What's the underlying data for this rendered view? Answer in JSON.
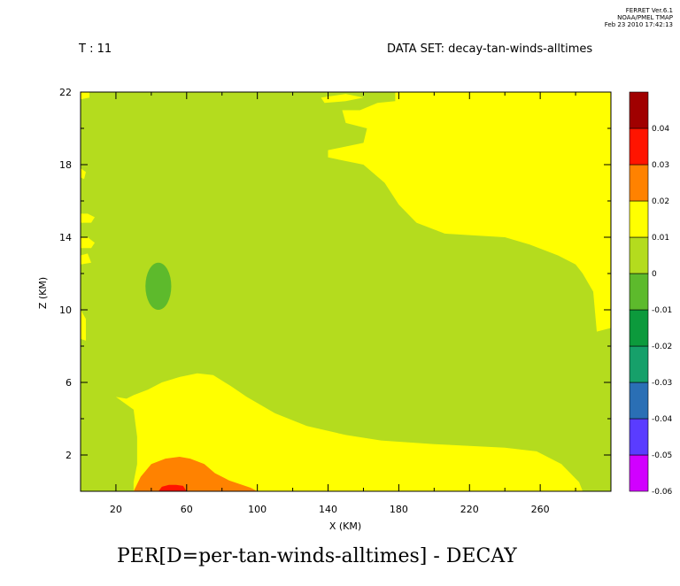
{
  "header": {
    "ferret_line1": "FERRET  Ver.6.1",
    "ferret_line2": "NOAA/PMEL TMAP",
    "ferret_line3": "Feb 23 2010 17:42:13",
    "time_label": "T : 11",
    "dataset_label": "DATA SET: decay-tan-winds-alltimes"
  },
  "bottom_title": "PER[D=per-tan-winds-alltimes] - DECAY",
  "chart_data": {
    "type": "heatmap",
    "xlabel": "X (KM)",
    "ylabel": "Z (KM)",
    "xlim": [
      0,
      300
    ],
    "ylim": [
      0,
      22
    ],
    "x_ticks": [
      20,
      60,
      100,
      140,
      180,
      220,
      260
    ],
    "x_minor": [
      40,
      80,
      120,
      160,
      200,
      240,
      280
    ],
    "y_ticks": [
      2,
      6,
      10,
      14,
      18,
      22
    ],
    "y_minor": [
      4,
      8,
      12,
      16,
      20
    ],
    "colorbar_levels": [
      -0.06,
      -0.05,
      -0.04,
      -0.03,
      -0.02,
      -0.01,
      0,
      0.01,
      0.02,
      0.03,
      0.04
    ],
    "colorbar_labels": [
      "-0.06",
      "-0.05",
      "-0.04",
      "-0.03",
      "-0.02",
      "-0.01",
      "0",
      "0.01",
      "0.02",
      "0.03",
      "0.04"
    ],
    "colorbar_colors": [
      "#d100ff",
      "#5a3cff",
      "#2a6fb5",
      "#16a06a",
      "#0c9a3c",
      "#5dba2c",
      "#b4dc1e",
      "#ffff00",
      "#ff8200",
      "#ff1400",
      "#a00000"
    ],
    "regions": [
      {
        "level": "0 to 0.01",
        "color": "#ffff00",
        "polygon": [
          [
            178,
            22
          ],
          [
            300,
            22
          ],
          [
            300,
            9
          ],
          [
            292,
            8.8
          ],
          [
            290,
            11
          ],
          [
            284,
            12
          ],
          [
            280,
            12.5
          ],
          [
            270,
            13
          ],
          [
            254,
            13.6
          ],
          [
            240,
            14
          ],
          [
            222,
            14.1
          ],
          [
            206,
            14.2
          ],
          [
            190,
            14.8
          ],
          [
            180,
            15.8
          ],
          [
            172,
            17
          ],
          [
            160,
            18
          ],
          [
            140,
            18.4
          ],
          [
            140,
            18.8
          ],
          [
            160,
            19.2
          ],
          [
            162,
            20
          ],
          [
            150,
            20.3
          ],
          [
            148,
            21
          ],
          [
            158,
            21
          ],
          [
            168,
            21.4
          ],
          [
            178,
            21.5
          ]
        ]
      },
      {
        "level": "0 to 0.01",
        "color": "#ffff00",
        "polygon": [
          [
            136,
            21.7
          ],
          [
            150,
            21.9
          ],
          [
            160,
            21.7
          ],
          [
            150,
            21.5
          ],
          [
            138,
            21.4
          ]
        ]
      },
      {
        "level": "0 to 0.01",
        "color": "#ffff00",
        "polygon": [
          [
            0,
            14.8
          ],
          [
            6,
            14.8
          ],
          [
            8,
            15.1
          ],
          [
            4,
            15.3
          ],
          [
            0,
            15.3
          ]
        ]
      },
      {
        "level": "0 to 0.01",
        "color": "#ffff00",
        "polygon": [
          [
            0,
            13.4
          ],
          [
            6,
            13.4
          ],
          [
            8,
            13.7
          ],
          [
            4,
            14
          ],
          [
            0,
            14
          ]
        ]
      },
      {
        "level": "0 to 0.01",
        "color": "#ffff00",
        "polygon": [
          [
            0,
            12.5
          ],
          [
            6,
            12.6
          ],
          [
            4,
            13.1
          ],
          [
            0,
            13
          ]
        ]
      },
      {
        "level": "0 to 0.01",
        "color": "#ffff00",
        "polygon": [
          [
            0,
            10
          ],
          [
            3,
            9.5
          ],
          [
            3,
            8.3
          ],
          [
            0,
            8.4
          ]
        ]
      },
      {
        "level": "0 to 0.01",
        "color": "#ffff00",
        "polygon": [
          [
            0,
            22
          ],
          [
            5,
            22
          ],
          [
            5,
            21.7
          ],
          [
            0,
            21.6
          ]
        ]
      },
      {
        "level": "0 to 0.01",
        "color": "#ffff00",
        "polygon": [
          [
            0,
            17.8
          ],
          [
            3,
            17.6
          ],
          [
            2,
            17.2
          ],
          [
            0,
            17.3
          ]
        ]
      },
      {
        "level": "0 to 0.01",
        "color": "#ffff00",
        "polygon": [
          [
            30,
            0
          ],
          [
            284,
            0
          ],
          [
            282,
            0.5
          ],
          [
            272,
            1.5
          ],
          [
            258,
            2.2
          ],
          [
            240,
            2.4
          ],
          [
            200,
            2.6
          ],
          [
            170,
            2.8
          ],
          [
            150,
            3.1
          ],
          [
            128,
            3.6
          ],
          [
            110,
            4.3
          ],
          [
            94,
            5.2
          ],
          [
            85,
            5.8
          ],
          [
            75,
            6.4
          ],
          [
            66,
            6.5
          ],
          [
            56,
            6.3
          ],
          [
            46,
            6
          ],
          [
            38,
            5.6
          ],
          [
            30,
            5.3
          ],
          [
            26,
            5.1
          ],
          [
            20,
            5.2
          ],
          [
            30,
            4.5
          ],
          [
            32,
            3
          ],
          [
            32,
            1.5
          ],
          [
            30,
            0.5
          ]
        ]
      },
      {
        "level": "0.01 to 0.02",
        "color": "#ff8200",
        "polygon": [
          [
            30,
            0
          ],
          [
            100,
            0
          ],
          [
            96,
            0.2
          ],
          [
            84,
            0.6
          ],
          [
            76,
            1
          ],
          [
            70,
            1.5
          ],
          [
            62,
            1.8
          ],
          [
            56,
            1.9
          ],
          [
            48,
            1.8
          ],
          [
            40,
            1.5
          ],
          [
            34,
            0.8
          ]
        ]
      },
      {
        "level": "0.02 to 0.03",
        "color": "#ff1400",
        "polygon": [
          [
            44,
            0
          ],
          [
            60,
            0
          ],
          [
            58,
            0.3
          ],
          [
            54,
            0.35
          ],
          [
            50,
            0.35
          ],
          [
            46,
            0.25
          ]
        ]
      },
      {
        "level": "-0.01 to -0.02",
        "color": "#5dba2c",
        "ellipse": {
          "cx": 44,
          "cy": 11.3,
          "rx": 7.3,
          "ry": 1.3
        }
      }
    ]
  }
}
